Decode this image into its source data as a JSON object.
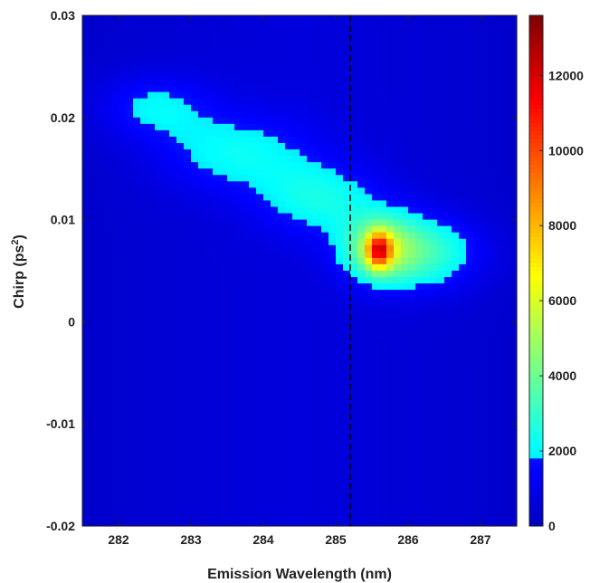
{
  "chart_data": {
    "type": "heatmap",
    "xlabel": "Emission Wavelength (nm)",
    "ylabel_main": "Chirp (ps",
    "ylabel_sup": "2",
    "ylabel_tail": ")",
    "xlim": [
      281.5,
      287.5
    ],
    "ylim": [
      -0.02,
      0.03
    ],
    "xticks": [
      282,
      283,
      284,
      285,
      286,
      287
    ],
    "xtick_labels": [
      "282",
      "283",
      "284",
      "285",
      "286",
      "287"
    ],
    "yticks": [
      -0.02,
      -0.01,
      0,
      0.01,
      0.02,
      0.03
    ],
    "ytick_labels": [
      "-0.02",
      "-0.01",
      "0",
      "0.01",
      "0.02",
      "0.03"
    ],
    "colorbar": {
      "range": [
        0,
        13600
      ],
      "ticks": [
        0,
        2000,
        4000,
        6000,
        8000,
        10000,
        12000
      ],
      "tick_labels": [
        "0",
        "2000",
        "4000",
        "6000",
        "8000",
        "10000",
        "12000"
      ],
      "colormap": "jet-thresholded"
    },
    "reference_line": {
      "x": 285.2,
      "style": "dashed",
      "color": "#000000"
    },
    "grid": false,
    "peak": {
      "x": 285.6,
      "y": 0.007,
      "value": 13500
    },
    "blobs": [
      {
        "cx": 285.6,
        "cy": 0.007,
        "sx": 0.12,
        "sy": 0.0012,
        "amp": 7000
      },
      {
        "cx": 285.6,
        "cy": 0.0072,
        "sx": 0.35,
        "sy": 0.0022,
        "amp": 3500
      },
      {
        "cx": 286.2,
        "cy": 0.0068,
        "sx": 0.55,
        "sy": 0.0025,
        "amp": 2600
      },
      {
        "cx": 284.8,
        "cy": 0.012,
        "sx": 0.6,
        "sy": 0.0025,
        "amp": 1700
      },
      {
        "cx": 283.6,
        "cy": 0.0165,
        "sx": 0.75,
        "sy": 0.0028,
        "amp": 1600
      },
      {
        "cx": 282.5,
        "cy": 0.021,
        "sx": 0.55,
        "sy": 0.0022,
        "amp": 1500
      }
    ],
    "background_level": 700
  }
}
